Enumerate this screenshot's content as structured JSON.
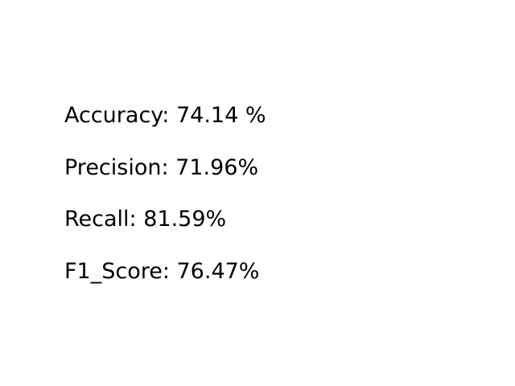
{
  "metrics": [
    {
      "text": "Accuracy: 74.14 %"
    },
    {
      "text": "Precision: 71.96%"
    },
    {
      "text": "Recall: 81.59%"
    },
    {
      "text": "F1_Score: 76.47%"
    }
  ]
}
